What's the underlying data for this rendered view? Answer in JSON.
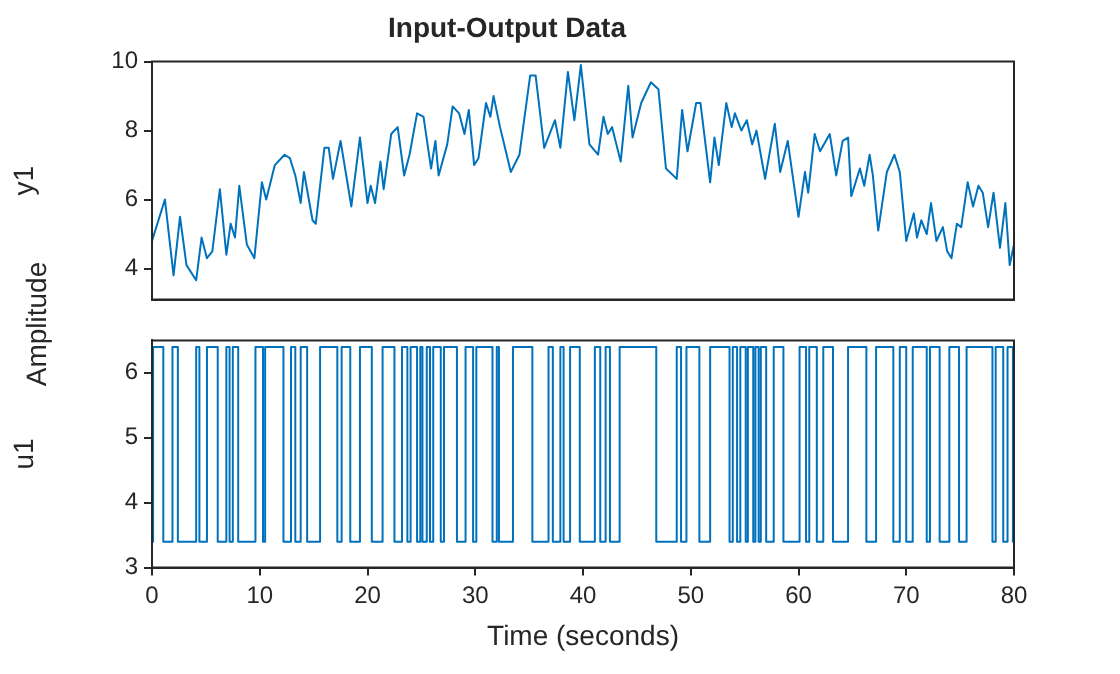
{
  "chart_data": [
    {
      "type": "line",
      "title": "Input-Output Data",
      "ylabel": "y1",
      "annotations": [
        "Amplitude"
      ],
      "xlim": [
        0,
        80
      ],
      "xticks": [
        0,
        10,
        20,
        30,
        40,
        50,
        60,
        70,
        80
      ],
      "ylim": [
        3.1,
        10
      ],
      "yticks": [
        4,
        6,
        8,
        10
      ],
      "tick_labels": "y",
      "grid": false,
      "legend": false,
      "marker": "none",
      "series": [
        {
          "color": "#0072bd",
          "x": [
            0,
            1.2,
            2.0,
            2.6,
            3.2,
            4.1,
            4.6,
            5.1,
            5.6,
            6.3,
            6.9,
            7.3,
            7.7,
            8.1,
            8.8,
            9.5,
            10.2,
            10.6,
            11.4,
            12.3,
            12.8,
            13.3,
            13.8,
            14.1,
            14.9,
            15.2,
            16.0,
            16.4,
            16.8,
            17.5,
            18.5,
            19.3,
            20.0,
            20.3,
            20.7,
            21.2,
            21.5,
            22.2,
            22.8,
            23.4,
            23.9,
            24.6,
            25.2,
            25.9,
            26.3,
            26.6,
            27.4,
            27.9,
            28.5,
            29.0,
            29.4,
            29.9,
            30.3,
            31.0,
            31.4,
            31.7,
            32.3,
            33.3,
            34.1,
            35.1,
            35.6,
            36.4,
            37.4,
            37.9,
            38.6,
            39.2,
            39.8,
            40.6,
            41.4,
            41.9,
            42.3,
            42.7,
            43.5,
            44.2,
            44.6,
            45.4,
            46.3,
            47.0,
            47.7,
            48.7,
            49.2,
            49.7,
            50.5,
            50.9,
            51.8,
            52.2,
            52.6,
            53.3,
            53.8,
            54.1,
            54.7,
            55.2,
            55.7,
            56.1,
            56.9,
            57.8,
            58.3,
            59.0,
            60.0,
            60.6,
            60.9,
            61.5,
            62.0,
            62.9,
            63.5,
            64.1,
            64.6,
            64.9,
            65.7,
            66.1,
            66.6,
            66.9,
            67.4,
            68.2,
            68.9,
            69.4,
            70.0,
            70.7,
            71.0,
            71.4,
            71.9,
            72.3,
            72.8,
            73.4,
            73.8,
            74.2,
            74.7,
            75.1,
            75.7,
            76.2,
            76.7,
            77.1,
            77.6,
            78.1,
            78.7,
            79.2,
            79.6,
            80.0
          ],
          "values": [
            4.8,
            6.0,
            3.8,
            5.5,
            4.1,
            3.66,
            4.9,
            4.3,
            4.5,
            6.3,
            4.4,
            5.3,
            4.9,
            6.4,
            4.7,
            4.3,
            6.5,
            6.0,
            7.0,
            7.3,
            7.2,
            6.7,
            5.9,
            6.8,
            5.4,
            5.3,
            7.5,
            7.5,
            6.6,
            7.7,
            5.8,
            7.8,
            5.9,
            6.4,
            5.9,
            7.1,
            6.3,
            7.9,
            8.1,
            6.7,
            7.3,
            8.5,
            8.4,
            6.9,
            7.7,
            6.7,
            7.6,
            8.7,
            8.5,
            7.9,
            8.6,
            7.0,
            7.2,
            8.8,
            8.4,
            9.0,
            8.1,
            6.8,
            7.3,
            9.6,
            9.6,
            7.5,
            8.3,
            7.5,
            9.7,
            8.3,
            9.9,
            7.6,
            7.3,
            8.4,
            7.9,
            8.1,
            7.1,
            9.3,
            7.8,
            8.8,
            9.4,
            9.2,
            6.9,
            6.6,
            8.6,
            7.4,
            8.8,
            8.8,
            6.5,
            7.8,
            7.0,
            8.8,
            8.1,
            8.5,
            8.0,
            8.3,
            7.6,
            8.0,
            6.6,
            8.2,
            6.8,
            7.7,
            5.5,
            6.8,
            6.2,
            7.9,
            7.4,
            7.9,
            6.7,
            7.7,
            7.8,
            6.1,
            6.9,
            6.4,
            7.3,
            6.7,
            5.1,
            6.8,
            7.3,
            6.8,
            4.8,
            5.6,
            4.9,
            5.4,
            5.0,
            5.9,
            4.8,
            5.2,
            4.5,
            4.3,
            5.3,
            5.2,
            6.5,
            5.8,
            6.4,
            6.2,
            5.2,
            6.2,
            4.6,
            5.9,
            4.1,
            4.7
          ]
        }
      ]
    },
    {
      "type": "step",
      "xlabel": "Time (seconds)",
      "ylabel": "u1",
      "xlim": [
        0,
        80
      ],
      "xticks": [
        0,
        10,
        20,
        30,
        40,
        50,
        60,
        70,
        80
      ],
      "ylim": [
        3,
        6.5
      ],
      "yticks": [
        3,
        4,
        5,
        6
      ],
      "grid": false,
      "legend": false,
      "marker": "none",
      "series": [
        {
          "color": "#0072bd",
          "x": [
            0,
            0.1,
            1.05,
            1.9,
            2.4,
            4.1,
            4.4,
            5.1,
            6.1,
            6.9,
            7.2,
            7.5,
            8.0,
            9.6,
            10.3,
            10.5,
            12.2,
            12.9,
            13.3,
            13.8,
            14.4,
            15.6,
            17.2,
            17.6,
            18.4,
            19.3,
            20.4,
            21.4,
            22.5,
            23.2,
            23.7,
            24.0,
            24.6,
            24.9,
            25.1,
            25.5,
            25.8,
            26.1,
            26.8,
            27.1,
            28.3,
            29.1,
            29.8,
            30.1,
            31.6,
            32.0,
            32.2,
            33.5,
            35.3,
            36.8,
            37.2,
            37.9,
            38.2,
            38.8,
            39.7,
            41.1,
            41.6,
            42.1,
            42.5,
            43.4,
            46.8,
            48.7,
            49.1,
            49.6,
            50.8,
            51.8,
            53.6,
            53.9,
            54.3,
            54.6,
            55.1,
            55.3,
            55.8,
            56.0,
            56.3,
            56.5,
            57.0,
            57.7,
            58.6,
            60.1,
            60.7,
            61.0,
            61.7,
            62.3,
            63.2,
            64.6,
            66.3,
            67.2,
            68.8,
            69.4,
            70.0,
            70.6,
            71.9,
            72.2,
            73.1,
            74.0,
            74.9,
            75.6,
            78.0,
            78.3,
            79.0,
            79.4,
            79.9,
            80
          ],
          "values": [
            3.4,
            6.4,
            3.4,
            6.4,
            3.4,
            6.4,
            3.4,
            6.4,
            3.4,
            6.4,
            3.4,
            6.4,
            3.4,
            6.4,
            3.4,
            6.4,
            3.4,
            6.4,
            3.4,
            6.4,
            3.4,
            6.4,
            3.4,
            6.4,
            3.4,
            6.4,
            3.4,
            6.4,
            3.4,
            6.4,
            3.4,
            6.4,
            3.4,
            6.4,
            3.4,
            6.4,
            3.4,
            6.4,
            3.4,
            6.4,
            3.4,
            6.4,
            3.4,
            6.4,
            3.4,
            6.4,
            3.4,
            6.4,
            3.4,
            6.4,
            3.4,
            6.4,
            3.4,
            6.4,
            3.4,
            6.4,
            3.4,
            6.4,
            3.4,
            6.4,
            3.4,
            6.4,
            3.4,
            6.4,
            3.4,
            6.4,
            3.4,
            6.4,
            3.4,
            6.4,
            3.4,
            6.4,
            3.4,
            6.4,
            3.4,
            6.4,
            3.4,
            6.4,
            3.4,
            6.4,
            3.4,
            6.4,
            3.4,
            6.4,
            3.4,
            6.4,
            3.4,
            6.4,
            3.4,
            6.4,
            3.4,
            6.4,
            3.4,
            6.4,
            3.4,
            6.4,
            3.4,
            6.4,
            3.4,
            6.4,
            3.4,
            6.4,
            3.4,
            3.4
          ]
        }
      ]
    }
  ]
}
